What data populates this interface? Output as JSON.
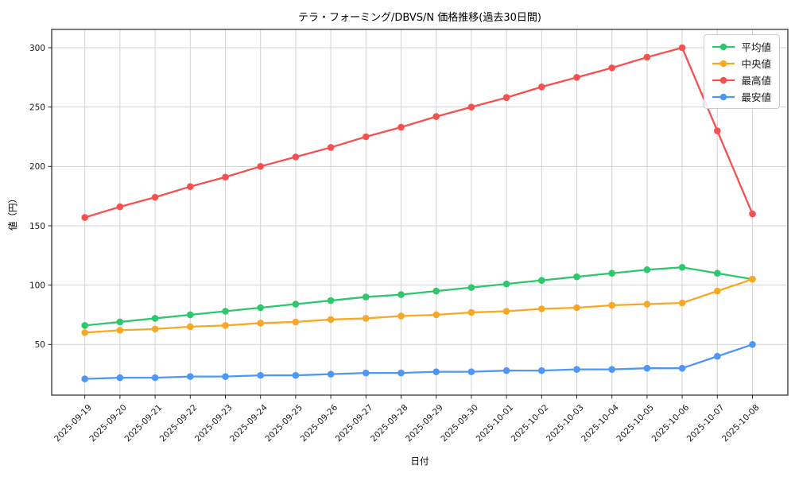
{
  "title": "テラ・フォーミング/DBVS/N 価格推移(過去30日間)",
  "chart_data": {
    "type": "line",
    "title": "テラ・フォーミング/DBVS/N 価格推移(過去30日間)",
    "xlabel": "日付",
    "ylabel": "値（円）",
    "grid": true,
    "grid_color": "#d4d4d4",
    "spine_color": "#262626",
    "background": "#ffffff",
    "legend_position": "upper right",
    "ylim": [
      7.5,
      315.5
    ],
    "y_ticks": [
      50,
      100,
      150,
      200,
      250,
      300
    ],
    "x": [
      "2025-09-19",
      "2025-09-20",
      "2025-09-21",
      "2025-09-22",
      "2025-09-23",
      "2025-09-24",
      "2025-09-25",
      "2025-09-26",
      "2025-09-27",
      "2025-09-28",
      "2025-09-29",
      "2025-09-30",
      "2025-10-01",
      "2025-10-02",
      "2025-10-03",
      "2025-10-04",
      "2025-10-05",
      "2025-10-06",
      "2025-10-07",
      "2025-10-08"
    ],
    "series": [
      {
        "id": "average",
        "label": "平均値",
        "color": "#2dc76d",
        "values": [
          66,
          69,
          72,
          75,
          78,
          81,
          84,
          87,
          90,
          92,
          95,
          98,
          101,
          104,
          107,
          110,
          113,
          115,
          110,
          105
        ]
      },
      {
        "id": "median",
        "label": "中央値",
        "color": "#f9a825",
        "values": [
          60,
          62,
          63,
          65,
          66,
          68,
          69,
          71,
          72,
          74,
          75,
          77,
          78,
          80,
          81,
          83,
          84,
          85,
          95,
          105
        ]
      },
      {
        "id": "max",
        "label": "最高値",
        "color": "#f94f4f",
        "values": [
          157,
          166,
          174,
          183,
          191,
          200,
          208,
          216,
          225,
          233,
          242,
          250,
          258,
          267,
          275,
          283,
          292,
          300,
          230,
          160
        ]
      },
      {
        "id": "min",
        "label": "最安値",
        "color": "#4f97f7",
        "values": [
          21,
          22,
          22,
          23,
          23,
          24,
          24,
          25,
          26,
          26,
          27,
          27,
          28,
          28,
          29,
          29,
          30,
          30,
          40,
          50
        ]
      }
    ]
  }
}
